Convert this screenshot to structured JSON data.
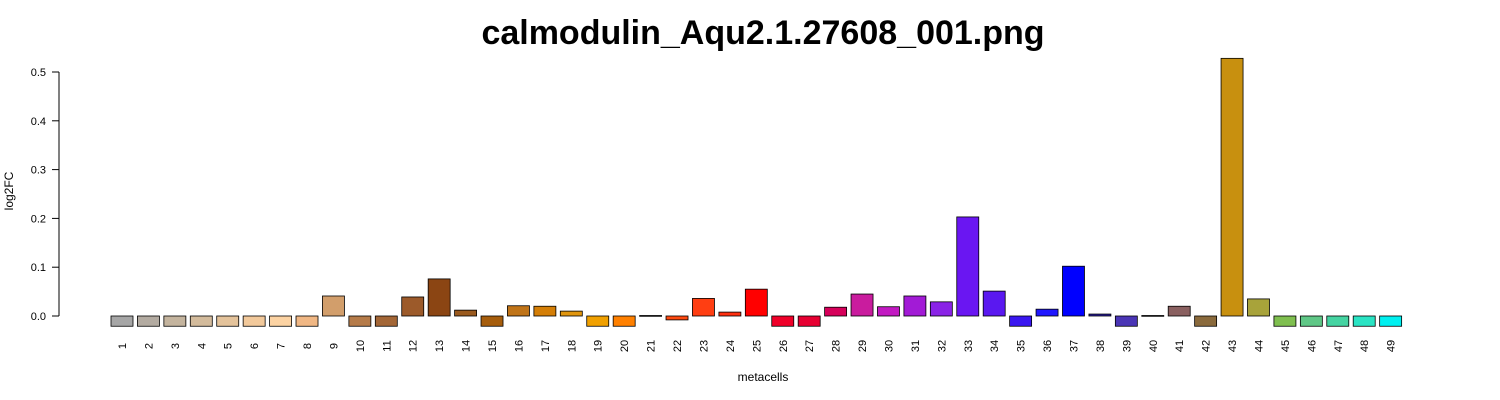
{
  "chart_data": {
    "type": "bar",
    "title": "calmodulin_Aqu2.1.27608_001.png",
    "xlabel": "metacells",
    "ylabel": "log2FC",
    "ylim": [
      -0.02,
      0.53
    ],
    "yticks": [
      "0.0",
      "0.1",
      "0.2",
      "0.3",
      "0.4",
      "0.5"
    ],
    "ytick_values": [
      0.0,
      0.1,
      0.2,
      0.3,
      0.4,
      0.5
    ],
    "grid": false,
    "categories": [
      "1",
      "2",
      "3",
      "4",
      "5",
      "6",
      "7",
      "8",
      "9",
      "10",
      "11",
      "12",
      "13",
      "14",
      "15",
      "16",
      "17",
      "18",
      "19",
      "20",
      "21",
      "22",
      "23",
      "24",
      "25",
      "26",
      "27",
      "28",
      "29",
      "30",
      "31",
      "32",
      "33",
      "34",
      "35",
      "36",
      "37",
      "38",
      "39",
      "40",
      "41",
      "42",
      "43",
      "44",
      "45",
      "46",
      "47",
      "48",
      "49"
    ],
    "values": [
      -0.021,
      -0.021,
      -0.021,
      -0.021,
      -0.021,
      -0.021,
      -0.021,
      -0.021,
      0.041,
      -0.021,
      -0.021,
      0.039,
      0.076,
      0.012,
      -0.021,
      0.021,
      0.02,
      0.01,
      -0.021,
      -0.021,
      0.001,
      -0.008,
      0.036,
      0.008,
      0.055,
      -0.021,
      -0.021,
      0.018,
      0.045,
      0.019,
      0.041,
      0.029,
      0.203,
      0.051,
      -0.021,
      0.014,
      0.102,
      0.004,
      -0.021,
      0.001,
      0.02,
      -0.021,
      0.528,
      0.035,
      -0.021,
      -0.021,
      -0.021,
      -0.021,
      -0.021
    ],
    "colors": [
      "#a6a6a6",
      "#b3aba1",
      "#c4b49e",
      "#d3bb9c",
      "#e4c39b",
      "#f2c99b",
      "#fcd3a3",
      "#f0b784",
      "#d29e6b",
      "#b57b49",
      "#a36636",
      "#9c5a2a",
      "#8b4513",
      "#9a5a1e",
      "#a65d0c",
      "#c07418",
      "#d47e06",
      "#e1960e",
      "#f0a000",
      "#ff8000",
      "#ff5c00",
      "#ff4a10",
      "#ff3e12",
      "#ff3010",
      "#ff0000",
      "#ef0029",
      "#e60032",
      "#d6005a",
      "#c91c9e",
      "#c219c2",
      "#a21bd6",
      "#8a23e6",
      "#6a16f2",
      "#5a18f0",
      "#3a17f0",
      "#1f16ff",
      "#0000ff",
      "#2b1ea6",
      "#4a35b5",
      "#6e5f8a",
      "#8a6060",
      "#8a6a3c",
      "#c8900f",
      "#a8a33a",
      "#7fbf4f",
      "#5fc786",
      "#45d4a2",
      "#2ae4c4",
      "#00f0f0"
    ]
  }
}
